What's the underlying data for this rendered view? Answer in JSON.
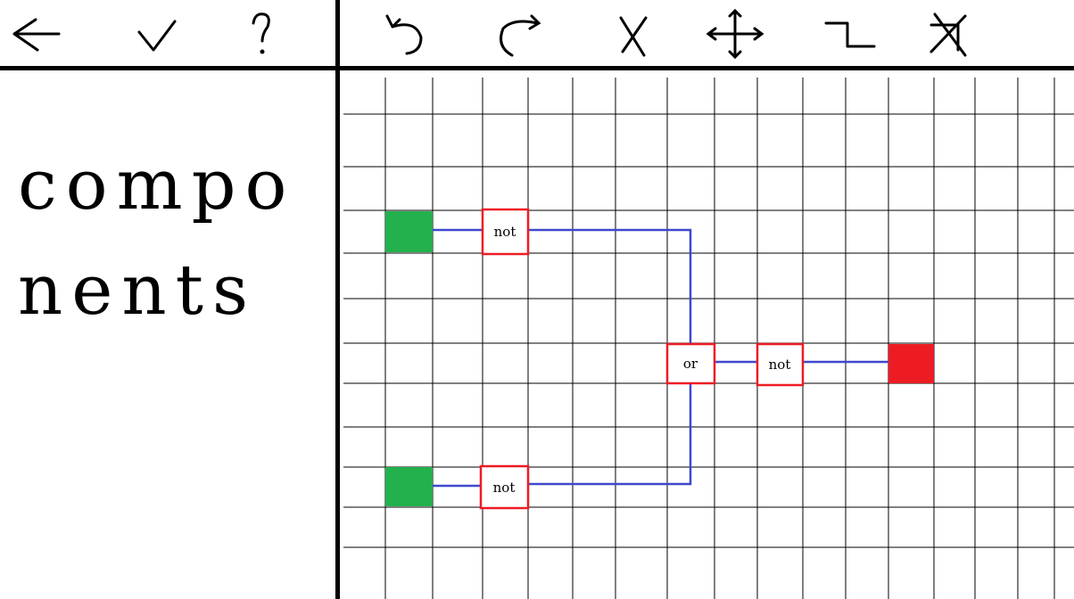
{
  "nav_tools": [
    {
      "name": "back-arrow-icon",
      "label": "back"
    },
    {
      "name": "checkmark-icon",
      "label": "confirm"
    },
    {
      "name": "question-mark-icon",
      "label": "help"
    }
  ],
  "edit_tools": [
    {
      "name": "undo-icon",
      "label": "undo"
    },
    {
      "name": "redo-icon",
      "label": "redo"
    },
    {
      "name": "delete-x-icon",
      "label": "delete"
    },
    {
      "name": "move-arrows-icon",
      "label": "move"
    },
    {
      "name": "wire-icon",
      "label": "wire"
    },
    {
      "name": "delete-wire-icon",
      "label": "delete wire"
    }
  ],
  "sidebar": {
    "title": "components"
  },
  "circuit": {
    "inputs": [
      {
        "id": "input-1",
        "color": "#22b14c"
      },
      {
        "id": "input-2",
        "color": "#22b14c"
      }
    ],
    "output": {
      "id": "output-1",
      "color": "#ed1c24"
    },
    "gates": [
      {
        "id": "not-1",
        "label": "not"
      },
      {
        "id": "not-2",
        "label": "not"
      },
      {
        "id": "or-1",
        "label": "or"
      },
      {
        "id": "not-3",
        "label": "not"
      }
    ],
    "wire_color": "#3f48cc",
    "gate_border_color": "#ed1c24",
    "grid_color": "#000000"
  }
}
